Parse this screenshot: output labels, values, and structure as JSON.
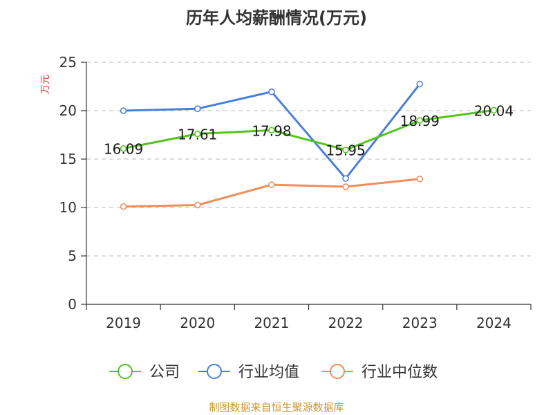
{
  "chart_data": {
    "type": "line",
    "title": "历年人均薪酬情况(万元)",
    "ylabel": "万元",
    "xlabel": "",
    "categories": [
      "2019",
      "2020",
      "2021",
      "2022",
      "2023",
      "2024"
    ],
    "ylim": [
      0,
      25
    ],
    "yticks": [
      0,
      5,
      10,
      15,
      20,
      25
    ],
    "grid": "horizontal-dashed",
    "legend_position": "bottom",
    "series": [
      {
        "name": "公司",
        "color": "#52c41a",
        "values": [
          16.09,
          17.61,
          17.98,
          15.95,
          18.99,
          20.04
        ],
        "data_labels": [
          "16.09",
          "17.61",
          "17.98",
          "15.95",
          "18.99",
          "20.04"
        ]
      },
      {
        "name": "行业均值",
        "color": "#4a7fd8",
        "values": [
          20.0,
          20.2,
          21.95,
          13.0,
          22.75,
          null
        ]
      },
      {
        "name": "行业中位数",
        "color": "#f28c5a",
        "values": [
          10.1,
          10.25,
          12.35,
          12.15,
          12.95,
          null
        ]
      }
    ]
  },
  "source_text": "制图数据来自恒生聚源数据库"
}
